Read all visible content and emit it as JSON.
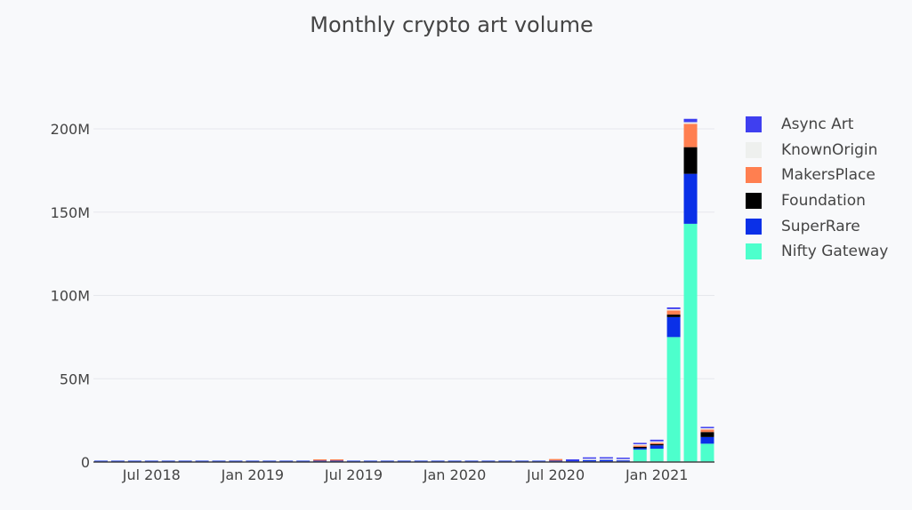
{
  "chart_data": {
    "type": "bar",
    "barmode": "stack",
    "title": "Monthly crypto art volume",
    "xlabel": "",
    "ylabel": "",
    "ylim": [
      0,
      210000000
    ],
    "yticks": [
      {
        "v": 0,
        "label": "0"
      },
      {
        "v": 50000000,
        "label": "50M"
      },
      {
        "v": 100000000,
        "label": "100M"
      },
      {
        "v": 150000000,
        "label": "150M"
      },
      {
        "v": 200000000,
        "label": "200M"
      }
    ],
    "xticks": [
      {
        "i": 3,
        "label": "Jul 2018"
      },
      {
        "i": 9,
        "label": "Jan 2019"
      },
      {
        "i": 15,
        "label": "Jul 2019"
      },
      {
        "i": 21,
        "label": "Jan 2020"
      },
      {
        "i": 27,
        "label": "Jul 2020"
      },
      {
        "i": 33,
        "label": "Jan 2021"
      }
    ],
    "categories": [
      "2018-04",
      "2018-05",
      "2018-06",
      "2018-07",
      "2018-08",
      "2018-09",
      "2018-10",
      "2018-11",
      "2018-12",
      "2019-01",
      "2019-02",
      "2019-03",
      "2019-04",
      "2019-05",
      "2019-06",
      "2019-07",
      "2019-08",
      "2019-09",
      "2019-10",
      "2019-11",
      "2019-12",
      "2020-01",
      "2020-02",
      "2020-03",
      "2020-04",
      "2020-05",
      "2020-06",
      "2020-07",
      "2020-08",
      "2020-09",
      "2020-10",
      "2020-11",
      "2020-12",
      "2021-01",
      "2021-02",
      "2021-03",
      "2021-04"
    ],
    "unit_values": "millions USD",
    "series": [
      {
        "name": "Nifty Gateway",
        "color": "#4dffcc",
        "values": [
          0,
          0,
          0,
          0,
          0,
          0,
          0,
          0,
          0,
          0,
          0,
          0,
          0,
          0,
          0,
          0,
          0,
          0,
          0,
          0,
          0,
          0,
          0,
          0,
          0,
          0,
          0,
          0,
          0,
          0,
          0,
          0,
          7.5,
          8,
          75,
          143,
          11
        ]
      },
      {
        "name": "SuperRare",
        "color": "#0a30e8",
        "values": [
          0.6,
          0.6,
          0.2,
          0.6,
          0.2,
          0.2,
          0.6,
          0.2,
          0.6,
          0.6,
          0.6,
          0.6,
          0.6,
          0.4,
          0.6,
          0.5,
          0.2,
          0.2,
          0.2,
          0.2,
          0.2,
          0.2,
          0.6,
          0.6,
          0.6,
          0.6,
          0.6,
          0.3,
          0.8,
          1.2,
          1.3,
          1.0,
          0.6,
          2,
          12,
          30,
          4
        ]
      },
      {
        "name": "Foundation",
        "color": "#000000",
        "values": [
          0,
          0,
          0,
          0,
          0,
          0,
          0,
          0,
          0,
          0,
          0,
          0,
          0,
          0,
          0,
          0,
          0,
          0,
          0,
          0,
          0,
          0,
          0,
          0,
          0,
          0,
          0,
          0,
          0,
          0,
          0,
          0,
          0.3,
          0.3,
          1.5,
          16,
          3
        ]
      },
      {
        "name": "MakersPlace",
        "color": "#ff7f50",
        "values": [
          0,
          0,
          0,
          0,
          0,
          0,
          0,
          0,
          0,
          0,
          0,
          0,
          0,
          0.1,
          0.6,
          0,
          0,
          0,
          0,
          0,
          0,
          0,
          0,
          0,
          0,
          0,
          0,
          1.0,
          0,
          0,
          0,
          0,
          0.3,
          0.3,
          2.5,
          14,
          1.5
        ]
      },
      {
        "name": "KnownOrigin",
        "color": "#eef0ee",
        "values": [
          0,
          0,
          0,
          0,
          0,
          0,
          0,
          0,
          0,
          0,
          0,
          0,
          0,
          0,
          0,
          0,
          0,
          0,
          0,
          0,
          0,
          0,
          0,
          0,
          0,
          0,
          0,
          0,
          0,
          0.2,
          0.3,
          0.3,
          0.3,
          0.3,
          0.5,
          1,
          0.3
        ]
      },
      {
        "name": "Async Art",
        "color": "#3f3ff0",
        "values": [
          0,
          0,
          0,
          0,
          0,
          0,
          0,
          0,
          0,
          0,
          0,
          0,
          0,
          0,
          0,
          0,
          0,
          0,
          0,
          0,
          0,
          0,
          0,
          0,
          0,
          0,
          0,
          0,
          0.2,
          0.6,
          0.6,
          0.8,
          0.8,
          1,
          1,
          2,
          0.5
        ]
      }
    ],
    "legend_order": [
      "Async Art",
      "KnownOrigin",
      "MakersPlace",
      "Foundation",
      "SuperRare",
      "Nifty Gateway"
    ],
    "legend_position": "right",
    "grid": true
  }
}
